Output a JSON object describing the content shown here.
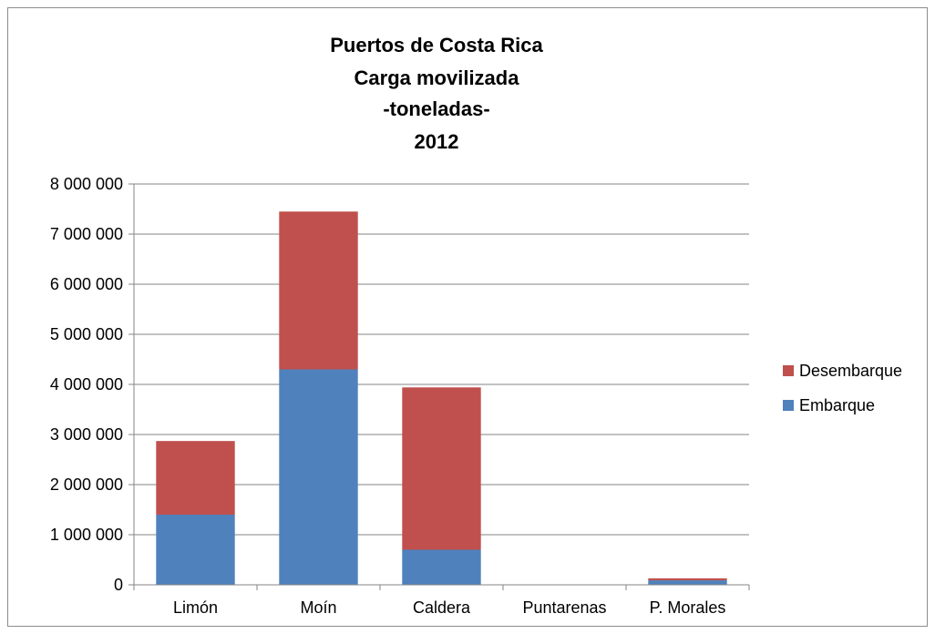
{
  "chart_data": {
    "type": "bar",
    "stacked": true,
    "title_lines": [
      "Puertos de Costa Rica",
      "Carga movilizada",
      "-toneladas-",
      "2012"
    ],
    "categories": [
      "Limón",
      "Moín",
      "Caldera",
      "Puntarenas",
      "P. Morales"
    ],
    "series": [
      {
        "name": "Embarque",
        "color": "#4f81bd",
        "values": [
          1400000,
          4300000,
          700000,
          0,
          90000
        ]
      },
      {
        "name": "Desembarque",
        "color": "#c0504d",
        "values": [
          1470000,
          3150000,
          3240000,
          0,
          40000
        ]
      }
    ],
    "ylim": [
      0,
      8000000
    ],
    "y_ticks": [
      0,
      1000000,
      2000000,
      3000000,
      4000000,
      5000000,
      6000000,
      7000000,
      8000000
    ],
    "y_tick_labels": [
      "0",
      "1 000 000",
      "2 000 000",
      "3 000 000",
      "4 000 000",
      "5 000 000",
      "6 000 000",
      "7 000 000",
      "8 000 000"
    ],
    "legend_order": [
      "Desembarque",
      "Embarque"
    ],
    "legend_position": "right",
    "grid": true,
    "xlabel": "",
    "ylabel": ""
  }
}
